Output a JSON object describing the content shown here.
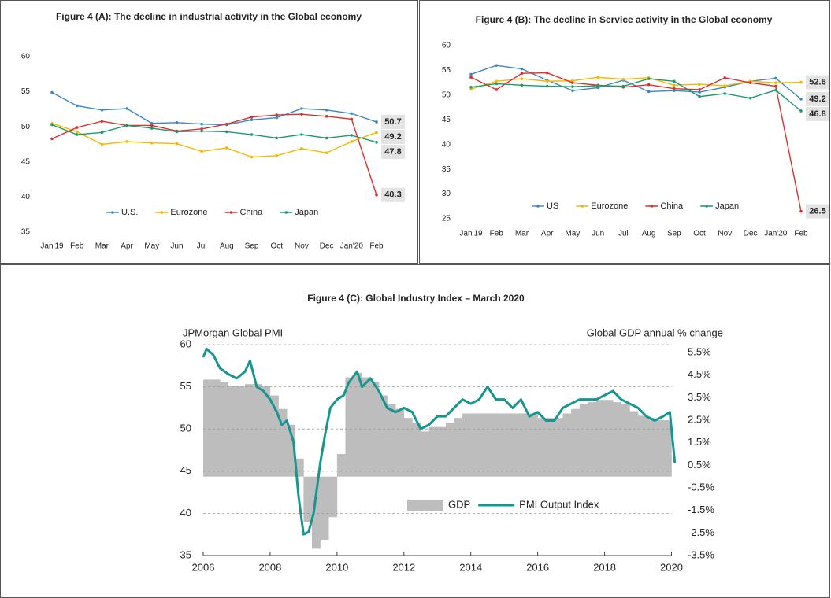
{
  "chart_data": [
    {
      "type": "line",
      "title": "Figure 4 (A): The decline in industrial activity in the Global economy",
      "categories": [
        "Jan'19",
        "Feb",
        "Mar",
        "Apr",
        "May",
        "Jun",
        "Jul",
        "Aug",
        "Sep",
        "Oct",
        "Nov",
        "Dec",
        "Jan'20",
        "Feb"
      ],
      "ylim": [
        35,
        60
      ],
      "yticks": [
        35,
        40,
        45,
        50,
        55,
        60
      ],
      "series": [
        {
          "name": "U.S.",
          "color": "#3a87c8",
          "values": [
            54.9,
            53.0,
            52.4,
            52.6,
            50.5,
            50.6,
            50.4,
            50.3,
            51.0,
            51.3,
            52.6,
            52.4,
            51.9,
            50.7
          ]
        },
        {
          "name": "Eurozone",
          "color": "#f5b800",
          "values": [
            50.5,
            49.3,
            47.5,
            47.9,
            47.7,
            47.6,
            46.5,
            47.0,
            45.7,
            45.9,
            46.9,
            46.3,
            47.9,
            49.2
          ]
        },
        {
          "name": "China",
          "color": "#d9302c",
          "values": [
            48.3,
            49.9,
            50.8,
            50.2,
            50.2,
            49.4,
            49.7,
            50.4,
            51.4,
            51.7,
            51.8,
            51.5,
            51.1,
            40.3
          ]
        },
        {
          "name": "Japan",
          "color": "#1a9a6b",
          "values": [
            50.3,
            48.9,
            49.2,
            50.2,
            49.8,
            49.3,
            49.4,
            49.3,
            48.9,
            48.4,
            48.9,
            48.4,
            48.8,
            47.8
          ]
        }
      ]
    },
    {
      "type": "line",
      "title": "Figure 4 (B): The decline in Service activity in the Global economy",
      "categories": [
        "Jan'19",
        "Feb",
        "Mar",
        "Apr",
        "May",
        "Jun",
        "Jul",
        "Aug",
        "Sep",
        "Oct",
        "Nov",
        "Dec",
        "Jan'20",
        "Feb"
      ],
      "ylim": [
        25,
        60
      ],
      "yticks": [
        25,
        30,
        35,
        40,
        45,
        50,
        55,
        60
      ],
      "series": [
        {
          "name": "US",
          "color": "#3a87c8",
          "values": [
            54.2,
            56.0,
            55.3,
            53.0,
            50.9,
            51.5,
            53.0,
            50.7,
            50.9,
            50.6,
            51.6,
            52.8,
            53.4,
            49.2
          ]
        },
        {
          "name": "Eurozone",
          "color": "#f5b800",
          "values": [
            51.2,
            52.8,
            53.3,
            52.8,
            52.9,
            53.6,
            53.2,
            53.5,
            52.0,
            52.2,
            51.9,
            52.8,
            52.5,
            52.6
          ]
        },
        {
          "name": "China",
          "color": "#d9302c",
          "values": [
            53.6,
            51.1,
            54.4,
            54.5,
            52.5,
            52.0,
            51.6,
            52.1,
            51.3,
            51.1,
            53.5,
            52.5,
            51.8,
            26.5
          ]
        },
        {
          "name": "Japan",
          "color": "#1a9a6b",
          "values": [
            51.6,
            52.3,
            52.0,
            51.8,
            51.7,
            51.9,
            51.8,
            53.3,
            52.8,
            49.7,
            50.3,
            49.4,
            51.0,
            46.8
          ]
        }
      ]
    },
    {
      "type": "combo",
      "title": "Figure 4 (C): Global Industry Index – March 2020",
      "y_label": "JPMorgan Global PMI",
      "y2_label": "Global GDP annual % change",
      "xlim": [
        2006,
        2020.2
      ],
      "xticks": [
        2006,
        2008,
        2010,
        2012,
        2014,
        2016,
        2018,
        2020
      ],
      "ylim": [
        35,
        60
      ],
      "yticks": [
        35,
        40,
        45,
        50,
        55,
        60
      ],
      "y2lim": [
        -3.5,
        5.85
      ],
      "y2ticks": [
        {
          "value": -3.5,
          "label": "-3.5%"
        },
        {
          "value": -2.5,
          "label": "-2.5%"
        },
        {
          "value": -1.5,
          "label": "-1.5%"
        },
        {
          "value": -0.5,
          "label": "-0.5%"
        },
        {
          "value": 0.5,
          "label": "0.5%"
        },
        {
          "value": 1.5,
          "label": "1.5%"
        },
        {
          "value": 2.5,
          "label": "2.5%"
        },
        {
          "value": 3.5,
          "label": "3.5%"
        },
        {
          "value": 4.5,
          "label": "4.5%"
        },
        {
          "value": 5.5,
          "label": "5.5%"
        }
      ],
      "grid": true,
      "series": [
        {
          "name": "GDP",
          "type": "bar",
          "axis": "y2",
          "color": "#bdbdbd",
          "x": [
            2006,
            2006.25,
            2006.5,
            2006.75,
            2007,
            2007.25,
            2007.5,
            2007.75,
            2008,
            2008.25,
            2008.5,
            2008.75,
            2009,
            2009.25,
            2009.5,
            2009.75,
            2010,
            2010.25,
            2010.5,
            2010.75,
            2011,
            2011.25,
            2011.5,
            2011.75,
            2012,
            2012.25,
            2012.5,
            2012.75,
            2013,
            2013.25,
            2013.5,
            2013.75,
            2014,
            2014.25,
            2014.5,
            2014.75,
            2015,
            2015.25,
            2015.5,
            2015.75,
            2016,
            2016.25,
            2016.5,
            2016.75,
            2017,
            2017.25,
            2017.5,
            2017.75,
            2018,
            2018.25,
            2018.5,
            2018.75,
            2019,
            2019.25,
            2019.5,
            2019.75
          ],
          "values": [
            4.3,
            4.3,
            4.2,
            4.0,
            4.0,
            4.1,
            4.1,
            4.0,
            3.6,
            3.0,
            2.3,
            0.8,
            -2.0,
            -3.2,
            -2.8,
            -1.8,
            1.0,
            4.4,
            4.6,
            4.4,
            4.2,
            3.6,
            3.2,
            3.0,
            2.6,
            2.4,
            2.0,
            2.2,
            2.2,
            2.4,
            2.6,
            2.8,
            2.8,
            2.8,
            2.8,
            2.8,
            2.8,
            2.8,
            2.8,
            2.8,
            2.6,
            2.6,
            2.6,
            2.8,
            3.0,
            3.2,
            3.3,
            3.4,
            3.4,
            3.3,
            3.2,
            2.9,
            2.7,
            2.6,
            2.5,
            2.5
          ]
        },
        {
          "name": "PMI Output Index",
          "type": "line",
          "color": "#16968f",
          "x": [
            2006,
            2006.1,
            2006.3,
            2006.5,
            2006.75,
            2007,
            2007.25,
            2007.4,
            2007.6,
            2007.8,
            2008,
            2008.2,
            2008.35,
            2008.5,
            2008.7,
            2008.85,
            2009,
            2009.15,
            2009.3,
            2009.5,
            2009.65,
            2009.8,
            2010,
            2010.2,
            2010.35,
            2010.6,
            2010.75,
            2011,
            2011.25,
            2011.5,
            2011.75,
            2012,
            2012.25,
            2012.5,
            2012.75,
            2013,
            2013.25,
            2013.5,
            2013.75,
            2014,
            2014.25,
            2014.5,
            2014.75,
            2015,
            2015.25,
            2015.5,
            2015.75,
            2016,
            2016.25,
            2016.5,
            2016.75,
            2017,
            2017.25,
            2017.5,
            2017.75,
            2018,
            2018.25,
            2018.5,
            2018.75,
            2019,
            2019.25,
            2019.5,
            2019.75,
            2019.95,
            2020.1
          ],
          "values": [
            58.5,
            59.5,
            58.8,
            57.2,
            56.5,
            56.0,
            56.8,
            58.1,
            55.0,
            54.5,
            53.5,
            52.0,
            50.5,
            51.0,
            48.5,
            42.0,
            37.5,
            37.8,
            40.0,
            46.0,
            49.5,
            52.5,
            53.5,
            54.0,
            55.5,
            56.8,
            55.0,
            56.0,
            54.5,
            52.5,
            52.0,
            52.5,
            52.0,
            50.0,
            50.5,
            51.5,
            51.5,
            52.5,
            53.5,
            53.0,
            53.5,
            55.0,
            53.5,
            53.5,
            52.5,
            53.5,
            51.5,
            52.0,
            51.0,
            51.0,
            52.5,
            53.0,
            53.5,
            53.5,
            53.5,
            54.0,
            54.5,
            53.5,
            53.0,
            52.5,
            51.5,
            51.0,
            51.5,
            52.0,
            46.0
          ]
        }
      ]
    }
  ]
}
